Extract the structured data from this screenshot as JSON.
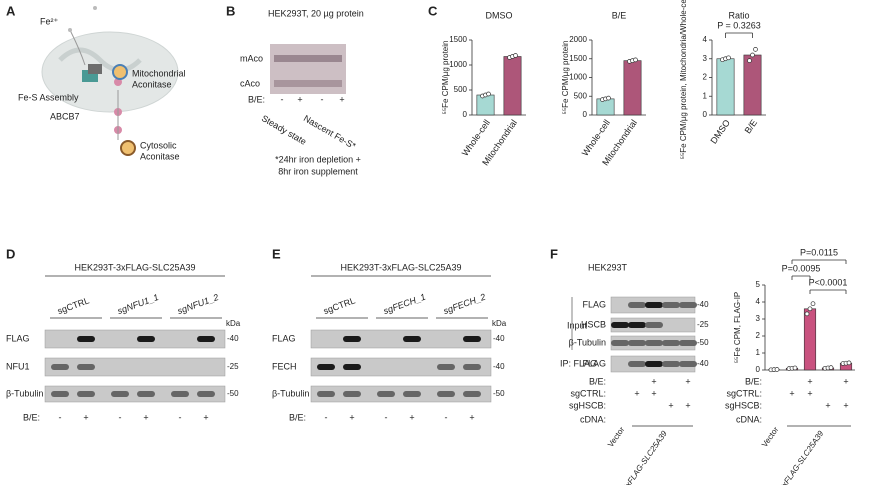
{
  "panel_a": {
    "letter": "A",
    "fe": "Fe²⁺",
    "fes_assembly": "Fe-S Assembly",
    "mito_aconitase": [
      "Mitochondrial",
      "Aconitase"
    ],
    "abcb7": "ABCB7",
    "cyto_aconitase": [
      "Cytosolic",
      "Aconitase"
    ]
  },
  "panel_b": {
    "letter": "B",
    "title": "HEK293T, 20 µg protein",
    "bands": [
      "mAco",
      "cAco"
    ],
    "treatment_label": "B/E:",
    "treatment": [
      "-",
      "+",
      "-",
      "+"
    ],
    "groups": [
      "Steady state",
      "Nascent Fe-S*"
    ],
    "footnote": [
      "*24hr iron depletion +",
      "8hr iron supplement"
    ]
  },
  "panel_c": {
    "letter": "C"
  },
  "panel_d": {
    "letter": "D",
    "title": "HEK293T-3xFLAG-SLC25A39",
    "groups": [
      "sgCTRL",
      "sgNFU1_1",
      "sgNFU1_2"
    ],
    "kda": "kDa",
    "rows": [
      {
        "label": "FLAG",
        "kda": "-40"
      },
      {
        "label": "NFU1",
        "kda": "-25"
      },
      {
        "label": "β-Tubulin",
        "kda": "-50"
      }
    ],
    "treatment_label": "B/E:",
    "treatment": [
      "-",
      "+",
      "-",
      "+",
      "-",
      "+"
    ]
  },
  "panel_e": {
    "letter": "E",
    "title": "HEK293T-3xFLAG-SLC25A39",
    "groups": [
      "sgCTRL",
      "sgFECH_1",
      "sgFECH_2"
    ],
    "kda": "kDa",
    "rows": [
      {
        "label": "FLAG",
        "kda": "-40"
      },
      {
        "label": "FECH",
        "kda": "-40"
      },
      {
        "label": "β-Tubulin",
        "kda": "-50"
      }
    ],
    "treatment_label": "B/E:",
    "treatment": [
      "-",
      "+",
      "-",
      "+",
      "-",
      "+"
    ]
  },
  "panel_f": {
    "letter": "F",
    "cell_line": "HEK293T",
    "input_label": "Input",
    "ip_label": "IP: FLAG",
    "rows": [
      {
        "label": "FLAG",
        "kda": "-40"
      },
      {
        "label": "HSCB",
        "kda": "-25"
      },
      {
        "label": "β-Tubulin",
        "kda": "-50"
      },
      {
        "label": "FLAG",
        "kda": "-40"
      }
    ],
    "conditions": [
      {
        "label": "B/E:",
        "marks": [
          null,
          null,
          "+",
          null,
          "+"
        ]
      },
      {
        "label": "sgCTRL:",
        "marks": [
          null,
          "+",
          "+",
          null,
          null
        ]
      },
      {
        "label": "sgHSCB:",
        "marks": [
          null,
          null,
          null,
          "+",
          "+"
        ]
      }
    ],
    "cdna_label": "cDNA:",
    "cdna": [
      "Vector",
      "3xFLAG-SLC25A39"
    ]
  },
  "chart_data": [
    {
      "type": "bar",
      "title": "DMSO",
      "y_label": "⁵⁵Fe CPM/µg protein",
      "categories": [
        "Whole-cell",
        "Mitochondrial"
      ],
      "values": [
        400,
        1170
      ],
      "replicates": [
        [
          380,
          400,
          420
        ],
        [
          1150,
          1170,
          1190
        ]
      ],
      "colors": [
        "#a6d9d3",
        "#ad5679"
      ],
      "ylim": [
        0,
        1500
      ],
      "yticks": [
        0,
        500,
        1000,
        1500
      ]
    },
    {
      "type": "bar",
      "title": "B/E",
      "y_label": "⁵⁵Fe CPM/µg protein",
      "categories": [
        "Whole-cell",
        "Mitochondrial"
      ],
      "values": [
        430,
        1450
      ],
      "replicates": [
        [
          410,
          430,
          450
        ],
        [
          1430,
          1450,
          1470
        ]
      ],
      "colors": [
        "#a6d9d3",
        "#ad5679"
      ],
      "ylim": [
        0,
        2000
      ],
      "yticks": [
        0,
        500,
        1000,
        1500,
        2000
      ]
    },
    {
      "type": "bar",
      "title": "Ratio",
      "y_label": "⁵⁵Fe CPM/µg protein, Mitochondria/Whole-cell",
      "categories": [
        "DMSO",
        "B/E"
      ],
      "values": [
        3.0,
        3.2
      ],
      "replicates": [
        [
          2.95,
          3.0,
          3.05
        ],
        [
          2.9,
          3.2,
          3.5
        ]
      ],
      "colors": [
        "#a6d9d3",
        "#ad5679"
      ],
      "ylim": [
        0,
        4
      ],
      "yticks": [
        0,
        1,
        2,
        3,
        4
      ],
      "annotations": [
        "P = 0.3263"
      ]
    },
    {
      "type": "bar",
      "y_label": "⁵⁵Fe CPM, FLAG-IP",
      "values": [
        0.02,
        0.1,
        3.6,
        0.12,
        0.4
      ],
      "replicates": [
        [
          0.01,
          0.02,
          0.03
        ],
        [
          0.08,
          0.1,
          0.12
        ],
        [
          3.3,
          3.6,
          3.9
        ],
        [
          0.1,
          0.12,
          0.14
        ],
        [
          0.38,
          0.4,
          0.42
        ]
      ],
      "colors": [
        "#c9527f",
        "#c9527f",
        "#c9527f",
        "#c9527f",
        "#c9527f"
      ],
      "ylim": [
        0,
        5
      ],
      "yticks": [
        0,
        1,
        2,
        3,
        4,
        5
      ],
      "annotations": [
        "P=0.0115",
        "P=0.0095",
        "P<0.0001"
      ]
    }
  ]
}
